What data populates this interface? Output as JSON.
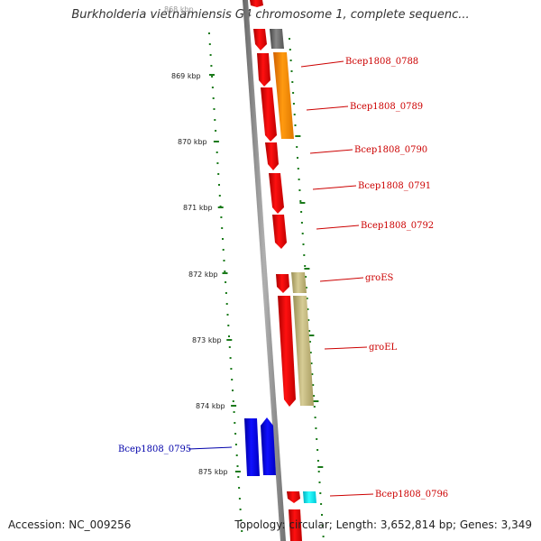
{
  "header": {
    "title": "Burkholderia vietnamiensis G4 chromosome 1, complete sequenc..."
  },
  "ruler": {
    "top_label": "868 kbp",
    "ticks": [
      "869 kbp",
      "870 kbp",
      "871 kbp",
      "872 kbp",
      "873 kbp",
      "874 kbp",
      "875 kbp"
    ]
  },
  "genes": [
    {
      "id": "Bcep1808_0788",
      "color": "#ff8c00"
    },
    {
      "id": "Bcep1808_0789",
      "color": "#ff0000"
    },
    {
      "id": "Bcep1808_0790",
      "color": "#ff0000"
    },
    {
      "id": "Bcep1808_0791",
      "color": "#ff0000"
    },
    {
      "id": "Bcep1808_0792",
      "color": "#ff0000"
    },
    {
      "id": "groES",
      "color": "#c8bb80"
    },
    {
      "id": "groEL",
      "color": "#c8bb80"
    },
    {
      "id": "Bcep1808_0795",
      "color": "#0000ff"
    },
    {
      "id": "Bcep1808_0796",
      "color": "#00ffff"
    }
  ],
  "footer": {
    "accession": "Accession: NC_009256",
    "topology": "Topology: circular; Length: 3,652,814 bp; Genes: 3,349"
  }
}
